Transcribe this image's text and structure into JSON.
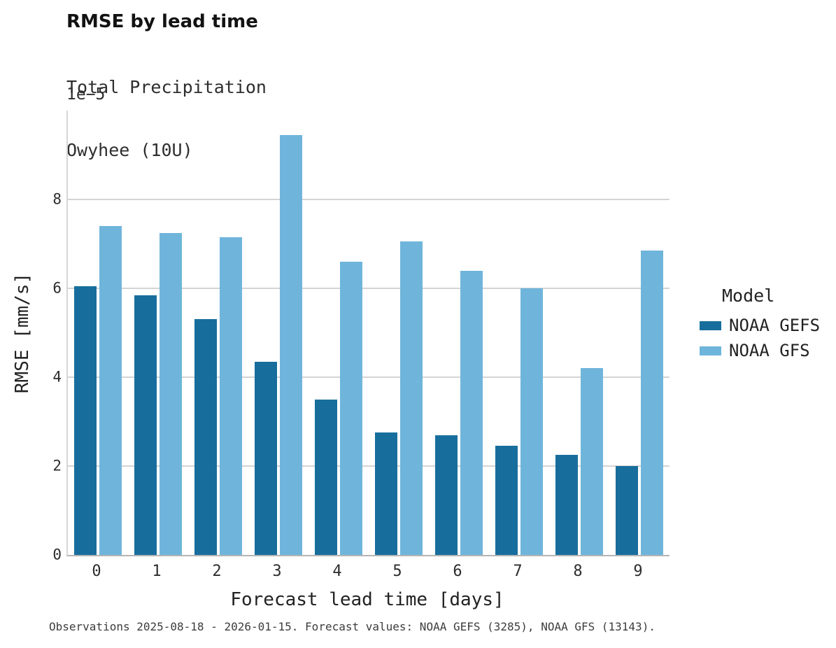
{
  "title": "RMSE by lead time",
  "subtitle_line1": "Total Precipitation",
  "subtitle_line2": "Owyhee (10U)",
  "offset_label": "1e−5",
  "legend": {
    "title": "Model",
    "entries": [
      {
        "label": "NOAA GEFS",
        "color": "#176e9d"
      },
      {
        "label": "NOAA GFS",
        "color": "#6fb5db"
      }
    ]
  },
  "footer": "Observations 2025-08-18 - 2026-01-15. Forecast values: NOAA GEFS (3285), NOAA GFS (13143).",
  "chart_data": {
    "type": "bar",
    "title": "RMSE by lead time",
    "subtitle": [
      "Total Precipitation",
      "Owyhee (10U)"
    ],
    "categories": [
      "0",
      "1",
      "2",
      "3",
      "4",
      "5",
      "6",
      "7",
      "8",
      "9"
    ],
    "series": [
      {
        "name": "NOAA GEFS",
        "color": "#176e9d",
        "values": [
          6.05,
          5.85,
          5.3,
          4.35,
          3.5,
          2.75,
          2.7,
          2.45,
          2.25,
          2.0
        ]
      },
      {
        "name": "NOAA GFS",
        "color": "#6fb5db",
        "values": [
          7.4,
          7.25,
          7.15,
          9.45,
          6.6,
          7.05,
          6.4,
          6.0,
          4.2,
          6.85
        ]
      }
    ],
    "value_scale": "1e-5",
    "xlabel": "Forecast lead time [days]",
    "ylabel": "RMSE [mm/s]",
    "ylim": [
      0,
      10
    ],
    "yticks": [
      0,
      2,
      4,
      6,
      8
    ],
    "grid": true,
    "legend_title": "Model",
    "legend_position": "right"
  }
}
